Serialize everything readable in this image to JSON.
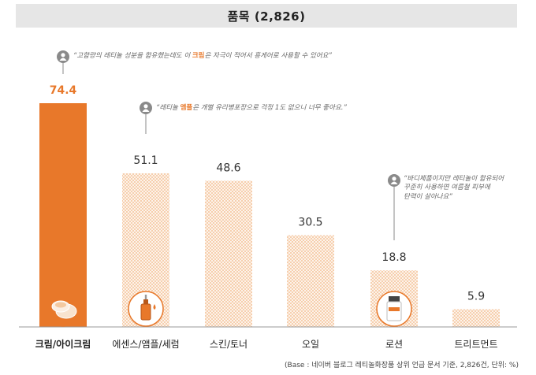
{
  "title": "품목 (2,826)",
  "footnote": "(Base : 네이버 블로그 레티놀화장품 상위 언급 문서 기준, 2,826건, 단위: %)",
  "colors": {
    "highlight": "#e8782a",
    "pattern_fill": "#f6cfae",
    "pattern_bg": "#fdf3ea",
    "baseline": "#999999",
    "marker": "#8a8a8a"
  },
  "callouts": [
    {
      "pre": "“고함량의 레티놀 성분을 함유했는데도 이 ",
      "key": "크림",
      "post": "은 자극이 적어서 흥게어로 사용할 수 있어요”"
    },
    {
      "pre": "“레티놀 ",
      "key": "앰플",
      "post": "은 개별 유리병포장으로 걱정 1도 없으니 너무 좋아요.”"
    },
    {
      "line1": "“바디제품이지만 레티놀이 함유되어",
      "line2": "꾸준히 사용하면 여름철 피부에",
      "line3": "탄력이 살아나요”"
    }
  ],
  "chart_data": {
    "type": "bar",
    "categories": [
      "크림/아이크림",
      "에센스/앰플/세럼",
      "스킨/토너",
      "오일",
      "로션",
      "트리트먼트"
    ],
    "values": [
      74.4,
      51.1,
      48.6,
      30.5,
      18.8,
      5.9
    ],
    "value_labels": [
      "74.4",
      "51.1",
      "48.6",
      "30.5",
      "18.8",
      "5.9"
    ],
    "highlight_index": 0,
    "icons": [
      "cream-jar-icon",
      "ampoule-dropper-icon",
      null,
      null,
      "lotion-bottle-icon",
      null
    ],
    "ylim": [
      0,
      74.4
    ],
    "unit": "%",
    "grid": false,
    "legend": "none"
  }
}
